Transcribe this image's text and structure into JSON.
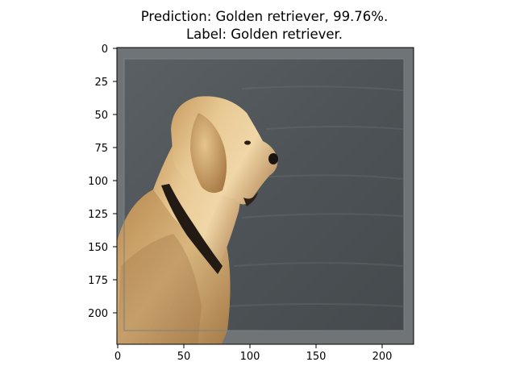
{
  "title": {
    "line1": "Prediction: Golden retriever, 99.76%.",
    "line2": "Label: Golden retriever."
  },
  "image": {
    "subject": "golden retriever dog in profile with dark collar, blurred gray water background",
    "colors": {
      "background_gray": "#4f5558",
      "frame_border": "#707677",
      "fur_light": "#e9cb97",
      "fur_mid": "#c79a5e",
      "fur_dark": "#8a6236",
      "collar": "#231a14",
      "nose": "#1a1411"
    }
  },
  "axes": {
    "x_ticks": [
      "0",
      "50",
      "100",
      "150",
      "200"
    ],
    "y_ticks": [
      "0",
      "25",
      "50",
      "75",
      "100",
      "125",
      "150",
      "175",
      "200"
    ]
  }
}
